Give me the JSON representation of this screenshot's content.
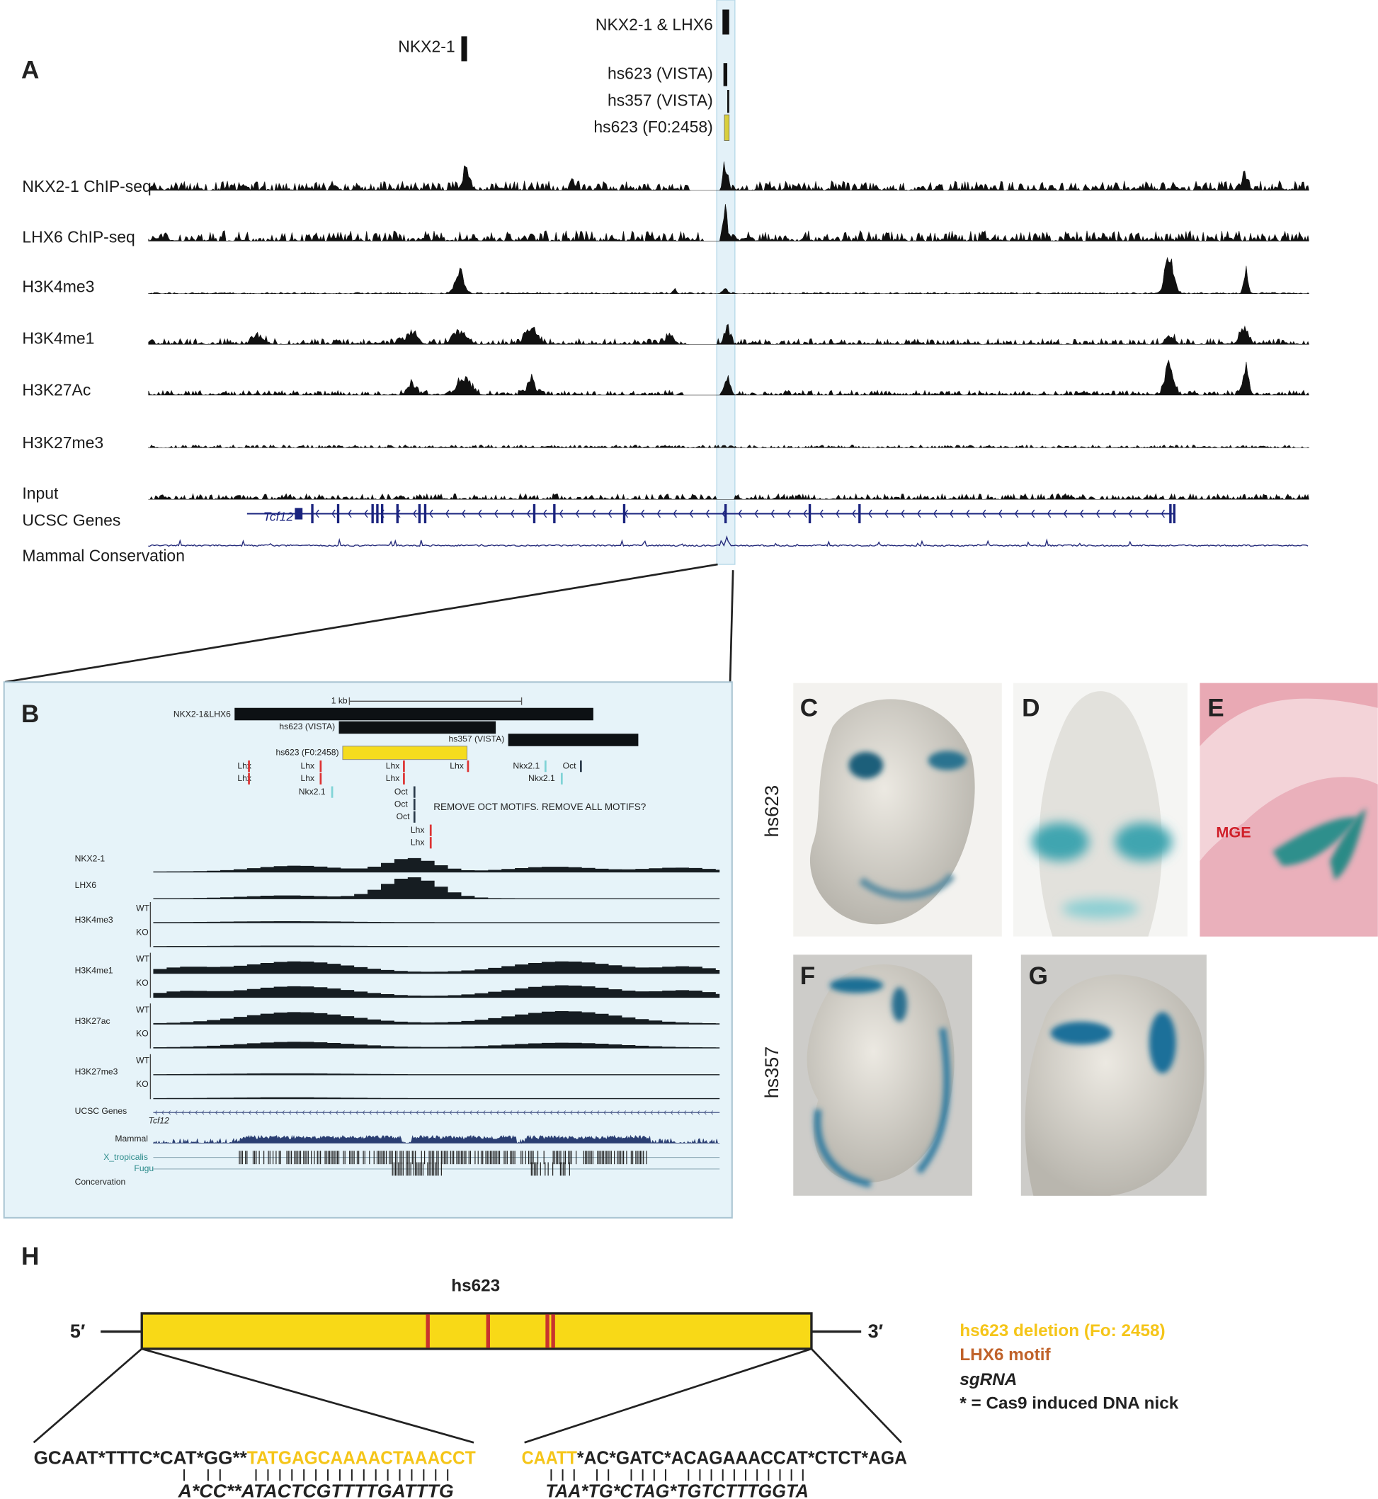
{
  "panel_a": {
    "label": "A",
    "regions": [
      "NKX2-1",
      "NKX2-1 & LHX6",
      "hs623 (VISTA)",
      "hs357 (VISTA)",
      "hs623 (F0:2458)"
    ],
    "tracks": [
      "NKX2-1 ChIP-seq",
      "LHX6 ChIP-seq",
      "H3K4me3",
      "H3K4me1",
      "H3K27Ac",
      "H3K27me3",
      "Input",
      "UCSC Genes",
      "Mammal Conservation"
    ],
    "gene": "Tcf12"
  },
  "panel_b": {
    "label": "B",
    "scale": "1 kb",
    "regions": [
      "NKX2-1&LHX6",
      "hs623 (VISTA)",
      "hs357 (VISTA)",
      "hs623 (F0:2458)"
    ],
    "motifs": [
      "Lhx",
      "Lhx",
      "Lhx",
      "Lhx",
      "Nkx2.1",
      "Lhx",
      "Lhx",
      "Oct",
      "Oct",
      "Oct",
      "Lhx",
      "Lhx",
      "Lhx",
      "Nkx2.1",
      "Nkx2.1",
      "Oct"
    ],
    "note": "REMOVE OCT MOTIFS. REMOVE ALL MOTIFS?",
    "chip_tracks": [
      "NKX2-1",
      "LHX6"
    ],
    "histone_tracks": [
      {
        "name": "H3K4me3",
        "wt": "WT",
        "ko": "KO"
      },
      {
        "name": "H3K4me1",
        "wt": "WT",
        "ko": "KO"
      },
      {
        "name": "H3K27ac",
        "wt": "WT",
        "ko": "KO"
      },
      {
        "name": "H3K27me3",
        "wt": "WT",
        "ko": "KO"
      }
    ],
    "genes": "UCSC Genes",
    "gene": "Tcf12",
    "mammal": "Mammal",
    "species": [
      "X_tropicalis",
      "Fugu"
    ],
    "conservation": "Concervation"
  },
  "panels": {
    "c": "C",
    "d": "D",
    "e": "E",
    "f": "F",
    "g": "G",
    "row1": "hs623",
    "row2": "hs357",
    "mge": "MGE"
  },
  "panel_h": {
    "label": "H",
    "title": "hs623",
    "five": "5′",
    "three": "3′",
    "legend": [
      "hs623 deletion (Fo: 2458)",
      "LHX6 motif",
      "sgRNA",
      "* = Cas9 induced DNA nick"
    ],
    "left_top": [
      "GCAAT*TTTC*CAT*GG**",
      "TATGAGCAAAACTAAACCT"
    ],
    "left_bottom": "A*CC**ATACTCGTTTTGATTTG",
    "right_top": [
      "CAATT",
      "*AC*GATC*ACAGAAACCAT*CTCT*AGA"
    ],
    "right_bottom": "TAA*TG*CTAG*TGTCTTTGGTA"
  }
}
